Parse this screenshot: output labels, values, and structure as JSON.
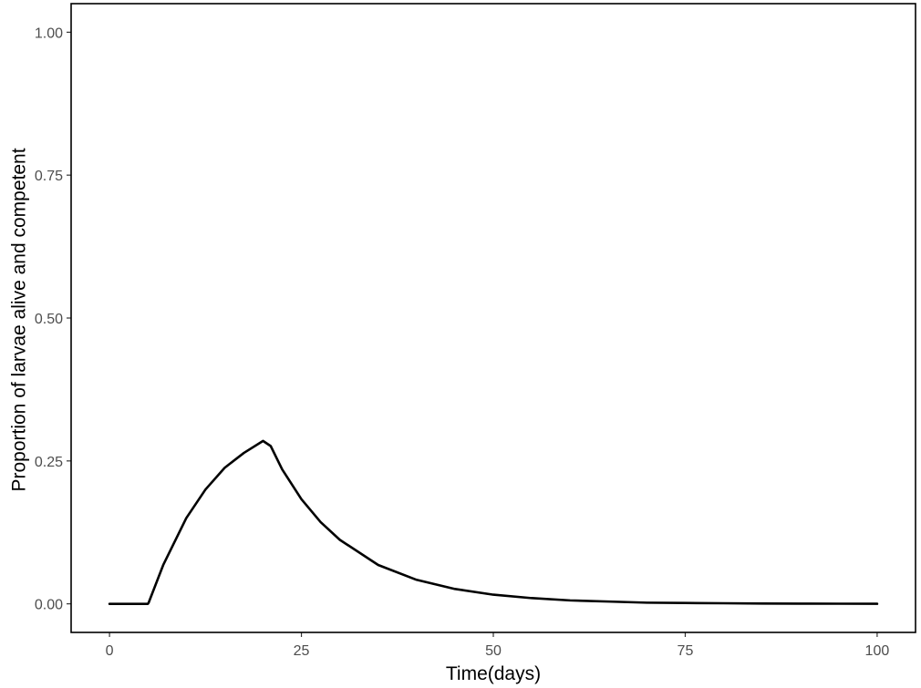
{
  "chart_data": {
    "type": "line",
    "title": "",
    "xlabel": "Time(days)",
    "ylabel": "Proportion of larvae alive and competent",
    "xlim": [
      -5,
      105
    ],
    "ylim": [
      -0.05,
      1.05
    ],
    "x_ticks": [
      0,
      25,
      50,
      75,
      100
    ],
    "x_tick_labels": [
      "0",
      "25",
      "50",
      "75",
      "100"
    ],
    "y_ticks": [
      0.0,
      0.25,
      0.5,
      0.75,
      1.0
    ],
    "y_tick_labels": [
      "0.00",
      "0.25",
      "0.50",
      "0.75",
      "1.00"
    ],
    "grid": false,
    "legend": "none",
    "series": [
      {
        "color": "#000000",
        "x": [
          0,
          5,
          5.1,
          7,
          10,
          12.5,
          15,
          17.5,
          20,
          21,
          22.5,
          25,
          27.5,
          30,
          35,
          40,
          45,
          50,
          55,
          60,
          65,
          70,
          75,
          80,
          85,
          90,
          95,
          100
        ],
        "y": [
          0,
          0,
          0.002,
          0.068,
          0.15,
          0.2,
          0.238,
          0.264,
          0.285,
          0.276,
          0.235,
          0.183,
          0.143,
          0.112,
          0.068,
          0.042,
          0.026,
          0.016,
          0.01,
          0.006,
          0.004,
          0.002,
          0.0015,
          0.001,
          0.0005,
          0.0003,
          0.0002,
          0.0001
        ]
      }
    ]
  }
}
